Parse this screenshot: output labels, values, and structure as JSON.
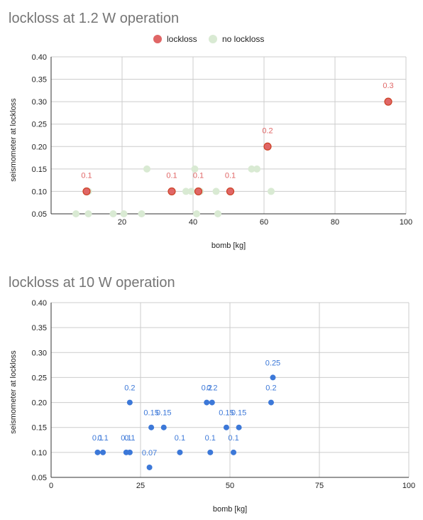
{
  "chart_data": [
    {
      "type": "scatter",
      "title": "lockloss at 1.2 W operation",
      "xlabel": "bomb [kg]",
      "ylabel": "seismometer at lockloss",
      "xlim": [
        0,
        100
      ],
      "ylim": [
        0.05,
        0.4
      ],
      "x_ticks": [
        "20",
        "40",
        "60",
        "80",
        "100"
      ],
      "y_ticks": [
        "0.05",
        "0.10",
        "0.15",
        "0.20",
        "0.25",
        "0.30",
        "0.35",
        "0.40"
      ],
      "grid": true,
      "legend_position": "top-center",
      "series": [
        {
          "name": "no lockloss",
          "color": "#d9ead3",
          "points": [
            {
              "x": 7,
              "y": 0.05
            },
            {
              "x": 10.5,
              "y": 0.05
            },
            {
              "x": 17.5,
              "y": 0.05
            },
            {
              "x": 20.5,
              "y": 0.05
            },
            {
              "x": 25.5,
              "y": 0.05
            },
            {
              "x": 41,
              "y": 0.05
            },
            {
              "x": 47,
              "y": 0.05
            },
            {
              "x": 27,
              "y": 0.15
            },
            {
              "x": 40.5,
              "y": 0.15
            },
            {
              "x": 56.5,
              "y": 0.15
            },
            {
              "x": 58,
              "y": 0.15
            },
            {
              "x": 10.5,
              "y": 0.1
            },
            {
              "x": 34,
              "y": 0.1
            },
            {
              "x": 38,
              "y": 0.1
            },
            {
              "x": 39.5,
              "y": 0.1
            },
            {
              "x": 42,
              "y": 0.1
            },
            {
              "x": 46.5,
              "y": 0.1
            },
            {
              "x": 50.5,
              "y": 0.1
            },
            {
              "x": 62,
              "y": 0.1
            },
            {
              "x": 95,
              "y": 0.3
            }
          ]
        },
        {
          "name": "lockloss",
          "color": "#e06666",
          "points": [
            {
              "x": 10,
              "y": 0.1,
              "label": "0.1"
            },
            {
              "x": 34,
              "y": 0.1,
              "label": "0.1"
            },
            {
              "x": 41.5,
              "y": 0.1,
              "label": "0.1"
            },
            {
              "x": 50.5,
              "y": 0.1,
              "label": "0.1"
            },
            {
              "x": 61,
              "y": 0.2,
              "label": "0.2"
            },
            {
              "x": 95,
              "y": 0.3,
              "label": "0.3"
            }
          ]
        }
      ]
    },
    {
      "type": "scatter",
      "title": "lockloss at 10 W operation",
      "xlabel": "bomb [kg]",
      "ylabel": "seismometer at lockloss",
      "xlim": [
        0,
        100
      ],
      "ylim": [
        0.05,
        0.4
      ],
      "x_ticks": [
        "0",
        "25",
        "50",
        "75",
        "100"
      ],
      "y_ticks": [
        "0.05",
        "0.10",
        "0.15",
        "0.20",
        "0.25",
        "0.30",
        "0.35",
        "0.40"
      ],
      "grid": true,
      "series": [
        {
          "color": "#3c78d8",
          "points": [
            {
              "x": 13,
              "y": 0.1,
              "label": "0.1"
            },
            {
              "x": 14.5,
              "y": 0.1,
              "label": "0.1"
            },
            {
              "x": 21,
              "y": 0.1,
              "label": "0.1"
            },
            {
              "x": 22,
              "y": 0.1,
              "label": "0.1"
            },
            {
              "x": 22,
              "y": 0.2,
              "label": "0.2"
            },
            {
              "x": 27.5,
              "y": 0.07,
              "label": "0.07"
            },
            {
              "x": 28,
              "y": 0.15,
              "label": "0.15"
            },
            {
              "x": 31.5,
              "y": 0.15,
              "label": "0.15"
            },
            {
              "x": 36,
              "y": 0.1,
              "label": "0.1"
            },
            {
              "x": 43.5,
              "y": 0.2,
              "label": "0.2"
            },
            {
              "x": 45,
              "y": 0.2,
              "label": "0.2"
            },
            {
              "x": 44.5,
              "y": 0.1,
              "label": "0.1"
            },
            {
              "x": 49,
              "y": 0.15,
              "label": "0.15"
            },
            {
              "x": 51,
              "y": 0.1,
              "label": "0.1"
            },
            {
              "x": 52.5,
              "y": 0.15,
              "label": "0.15"
            },
            {
              "x": 61.5,
              "y": 0.2,
              "label": "0.2"
            },
            {
              "x": 62,
              "y": 0.25,
              "label": "0.25"
            }
          ]
        }
      ]
    }
  ]
}
